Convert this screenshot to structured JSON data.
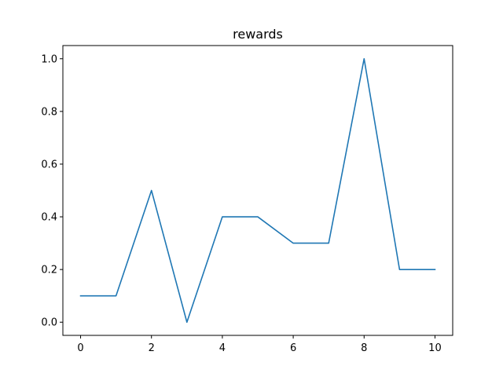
{
  "chart_data": {
    "type": "line",
    "title": "rewards",
    "xlabel": "",
    "ylabel": "",
    "x": [
      0,
      1,
      2,
      3,
      4,
      5,
      6,
      7,
      8,
      9,
      10
    ],
    "series": [
      {
        "values": [
          0.1,
          0.1,
          0.5,
          0.0,
          0.4,
          0.4,
          0.3,
          0.3,
          1.0,
          0.2,
          0.2
        ],
        "color": "#1f77b4"
      }
    ],
    "xlim": [
      -0.5,
      10.5
    ],
    "ylim": [
      -0.05,
      1.05
    ],
    "xticks": [
      0,
      2,
      4,
      6,
      8,
      10
    ],
    "xtick_labels": [
      "0",
      "2",
      "4",
      "6",
      "8",
      "10"
    ],
    "yticks": [
      0.0,
      0.2,
      0.4,
      0.6,
      0.8,
      1.0
    ],
    "ytick_labels": [
      "0.0",
      "0.2",
      "0.4",
      "0.6",
      "0.8",
      "1.0"
    ],
    "grid": false,
    "legend": false
  }
}
